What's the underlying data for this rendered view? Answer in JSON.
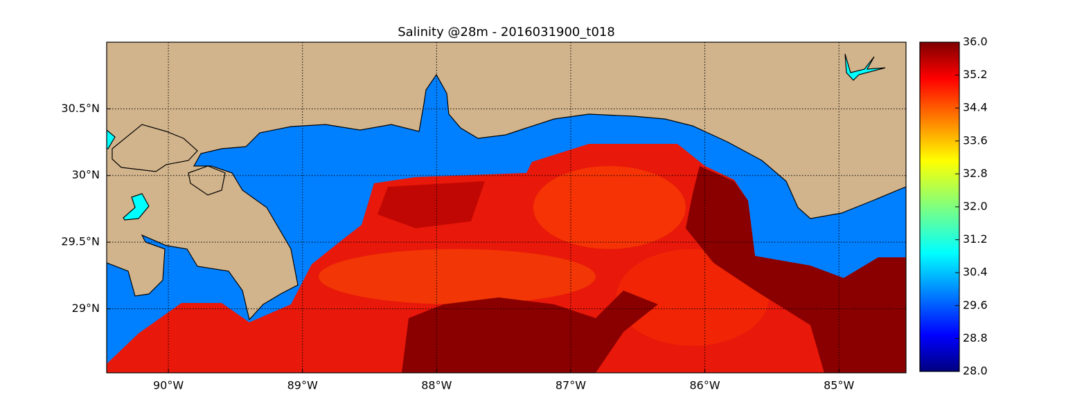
{
  "map": {
    "title": "Salinity @28m - 2016031900_t018",
    "xlim": [
      -90.46,
      -84.5
    ],
    "ylim": [
      28.52,
      31.0
    ],
    "xticks": [
      {
        "value": -90,
        "label": "90°W"
      },
      {
        "value": -89,
        "label": "89°W"
      },
      {
        "value": -88,
        "label": "88°W"
      },
      {
        "value": -87,
        "label": "87°W"
      },
      {
        "value": -86,
        "label": "86°W"
      },
      {
        "value": -85,
        "label": "85°W"
      }
    ],
    "yticks": [
      {
        "value": 30.5,
        "label": "30.5°N"
      },
      {
        "value": 30,
        "label": "30°N"
      },
      {
        "value": 29.5,
        "label": "29.5°N"
      },
      {
        "value": 29,
        "label": "29°N"
      }
    ],
    "grid": true,
    "colorbar": {
      "range": [
        28,
        36
      ],
      "ticks": [
        {
          "value": 36,
          "label": "36.0"
        },
        {
          "value": 35.2,
          "label": "35.2"
        },
        {
          "value": 34.4,
          "label": "34.4"
        },
        {
          "value": 33.6,
          "label": "33.6"
        },
        {
          "value": 32.8,
          "label": "32.8"
        },
        {
          "value": 32,
          "label": "32.0"
        },
        {
          "value": 31.2,
          "label": "31.2"
        },
        {
          "value": 30.4,
          "label": "30.4"
        },
        {
          "value": 29.6,
          "label": "29.6"
        },
        {
          "value": 28.8,
          "label": "28.8"
        },
        {
          "value": 28,
          "label": "28.0"
        }
      ]
    }
  }
}
